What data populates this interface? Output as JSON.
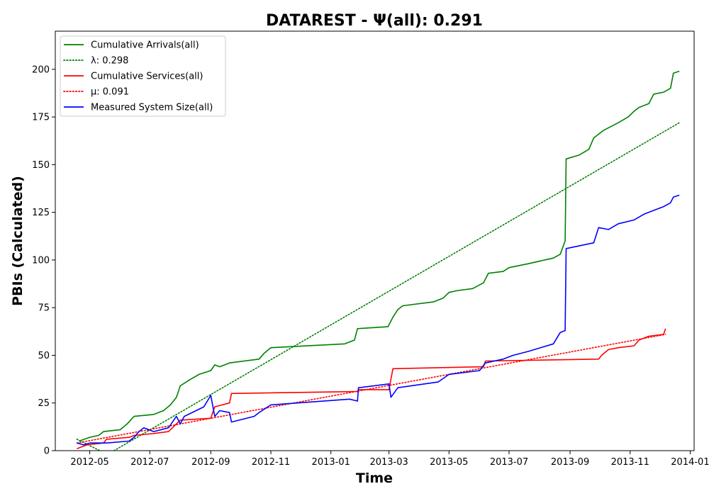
{
  "chart_data": {
    "type": "line",
    "title": "DATAREST -  Ψ(all): 0.291",
    "xlabel": "Time",
    "ylabel": "PBIs (Calculated)",
    "xlim": [
      "2012-03-27",
      "2014-01-05"
    ],
    "ylim": [
      0,
      220
    ],
    "x_ticks": [
      "2012-05",
      "2012-07",
      "2012-09",
      "2012-11",
      "2013-01",
      "2013-03",
      "2013-05",
      "2013-07",
      "2013-09",
      "2013-11",
      "2014-01"
    ],
    "y_ticks": [
      0,
      25,
      50,
      75,
      100,
      125,
      150,
      175,
      200
    ],
    "grid": false,
    "legend_position": "top-left",
    "series": [
      {
        "name": "Cumulative Arrivals(all)",
        "color": "#008000",
        "style": "solid",
        "points": [
          [
            "2012-04-20",
            5
          ],
          [
            "2012-05-01",
            7
          ],
          [
            "2012-05-10",
            8
          ],
          [
            "2012-05-15",
            10
          ],
          [
            "2012-06-01",
            11
          ],
          [
            "2012-06-08",
            14
          ],
          [
            "2012-06-15",
            18
          ],
          [
            "2012-07-05",
            19
          ],
          [
            "2012-07-15",
            21
          ],
          [
            "2012-07-22",
            24
          ],
          [
            "2012-07-28",
            28
          ],
          [
            "2012-08-01",
            34
          ],
          [
            "2012-08-10",
            37
          ],
          [
            "2012-08-20",
            40
          ],
          [
            "2012-09-01",
            42
          ],
          [
            "2012-09-05",
            45
          ],
          [
            "2012-09-10",
            44
          ],
          [
            "2012-09-20",
            46
          ],
          [
            "2012-10-20",
            48
          ],
          [
            "2012-10-25",
            51
          ],
          [
            "2012-11-01",
            54
          ],
          [
            "2013-01-15",
            56
          ],
          [
            "2013-01-25",
            58
          ],
          [
            "2013-01-28",
            64
          ],
          [
            "2013-02-28",
            65
          ],
          [
            "2013-03-05",
            70
          ],
          [
            "2013-03-10",
            74
          ],
          [
            "2013-03-15",
            76
          ],
          [
            "2013-04-15",
            78
          ],
          [
            "2013-04-25",
            80
          ],
          [
            "2013-05-01",
            83
          ],
          [
            "2013-05-10",
            84
          ],
          [
            "2013-05-25",
            85
          ],
          [
            "2013-06-05",
            88
          ],
          [
            "2013-06-10",
            93
          ],
          [
            "2013-06-25",
            94
          ],
          [
            "2013-07-01",
            96
          ],
          [
            "2013-07-20",
            98
          ],
          [
            "2013-08-15",
            101
          ],
          [
            "2013-08-22",
            103
          ],
          [
            "2013-08-27",
            110
          ],
          [
            "2013-08-28",
            153
          ],
          [
            "2013-09-10",
            155
          ],
          [
            "2013-09-20",
            158
          ],
          [
            "2013-09-25",
            164
          ],
          [
            "2013-10-05",
            168
          ],
          [
            "2013-10-20",
            172
          ],
          [
            "2013-10-30",
            175
          ],
          [
            "2013-11-05",
            178
          ],
          [
            "2013-11-10",
            180
          ],
          [
            "2013-11-20",
            182
          ],
          [
            "2013-11-25",
            187
          ],
          [
            "2013-12-05",
            188
          ],
          [
            "2013-12-12",
            190
          ],
          [
            "2013-12-15",
            198
          ],
          [
            "2013-12-21",
            199
          ]
        ]
      },
      {
        "name": "λ: 0.298",
        "color": "#008000",
        "style": "dotted",
        "points": [
          [
            "2012-04-18",
            6
          ],
          [
            "2012-05-19",
            -2
          ],
          [
            "2013-12-21",
            172
          ]
        ]
      },
      {
        "name": "Cumulative Services(all)",
        "color": "#ff0000",
        "style": "solid",
        "points": [
          [
            "2012-04-18",
            1
          ],
          [
            "2012-04-28",
            3
          ],
          [
            "2012-05-15",
            4
          ],
          [
            "2012-05-18",
            6
          ],
          [
            "2012-06-10",
            7
          ],
          [
            "2012-06-15",
            8
          ],
          [
            "2012-07-05",
            9
          ],
          [
            "2012-07-20",
            10
          ],
          [
            "2012-07-28",
            14
          ],
          [
            "2012-08-01",
            16
          ],
          [
            "2012-09-01",
            17
          ],
          [
            "2012-09-05",
            23
          ],
          [
            "2012-09-20",
            25
          ],
          [
            "2012-09-22",
            30
          ],
          [
            "2013-01-28",
            31
          ],
          [
            "2013-01-29",
            32
          ],
          [
            "2013-03-01",
            32
          ],
          [
            "2013-03-05",
            43
          ],
          [
            "2013-06-05",
            44
          ],
          [
            "2013-06-07",
            47
          ],
          [
            "2013-09-30",
            48
          ],
          [
            "2013-10-03",
            50
          ],
          [
            "2013-10-10",
            53
          ],
          [
            "2013-10-20",
            54
          ],
          [
            "2013-11-05",
            55
          ],
          [
            "2013-11-10",
            58
          ],
          [
            "2013-11-20",
            60
          ],
          [
            "2013-12-05",
            61
          ],
          [
            "2013-12-07",
            64
          ]
        ]
      },
      {
        "name": "μ: 0.091",
        "color": "#ff0000",
        "style": "dotted",
        "points": [
          [
            "2012-04-18",
            4
          ],
          [
            "2013-12-07",
            61
          ]
        ]
      },
      {
        "name": "Measured System Size(all)",
        "color": "#0000ff",
        "style": "solid",
        "points": [
          [
            "2012-04-18",
            4
          ],
          [
            "2012-04-25",
            3
          ],
          [
            "2012-05-01",
            4
          ],
          [
            "2012-05-18",
            4
          ],
          [
            "2012-06-10",
            5
          ],
          [
            "2012-06-15",
            7
          ],
          [
            "2012-06-20",
            10
          ],
          [
            "2012-06-25",
            12
          ],
          [
            "2012-07-05",
            10
          ],
          [
            "2012-07-20",
            12
          ],
          [
            "2012-07-28",
            18
          ],
          [
            "2012-08-01",
            14
          ],
          [
            "2012-08-05",
            18
          ],
          [
            "2012-08-25",
            23
          ],
          [
            "2012-09-01",
            29
          ],
          [
            "2012-09-05",
            18
          ],
          [
            "2012-09-10",
            21
          ],
          [
            "2012-09-20",
            20
          ],
          [
            "2012-09-22",
            15
          ],
          [
            "2012-10-15",
            18
          ],
          [
            "2012-10-20",
            20
          ],
          [
            "2012-11-01",
            24
          ],
          [
            "2013-01-20",
            27
          ],
          [
            "2013-01-28",
            26
          ],
          [
            "2013-01-29",
            33
          ],
          [
            "2013-03-01",
            35
          ],
          [
            "2013-03-03",
            28
          ],
          [
            "2013-03-10",
            33
          ],
          [
            "2013-04-20",
            36
          ],
          [
            "2013-05-01",
            40
          ],
          [
            "2013-06-01",
            42
          ],
          [
            "2013-06-07",
            46
          ],
          [
            "2013-06-25",
            48
          ],
          [
            "2013-07-05",
            50
          ],
          [
            "2013-07-20",
            52
          ],
          [
            "2013-08-15",
            56
          ],
          [
            "2013-08-22",
            62
          ],
          [
            "2013-08-27",
            63
          ],
          [
            "2013-08-28",
            106
          ],
          [
            "2013-09-25",
            109
          ],
          [
            "2013-09-30",
            117
          ],
          [
            "2013-10-10",
            116
          ],
          [
            "2013-10-20",
            119
          ],
          [
            "2013-11-05",
            121
          ],
          [
            "2013-11-15",
            124
          ],
          [
            "2013-11-25",
            126
          ],
          [
            "2013-12-05",
            128
          ],
          [
            "2013-12-12",
            130
          ],
          [
            "2013-12-15",
            133
          ],
          [
            "2013-12-21",
            134
          ]
        ]
      }
    ]
  }
}
